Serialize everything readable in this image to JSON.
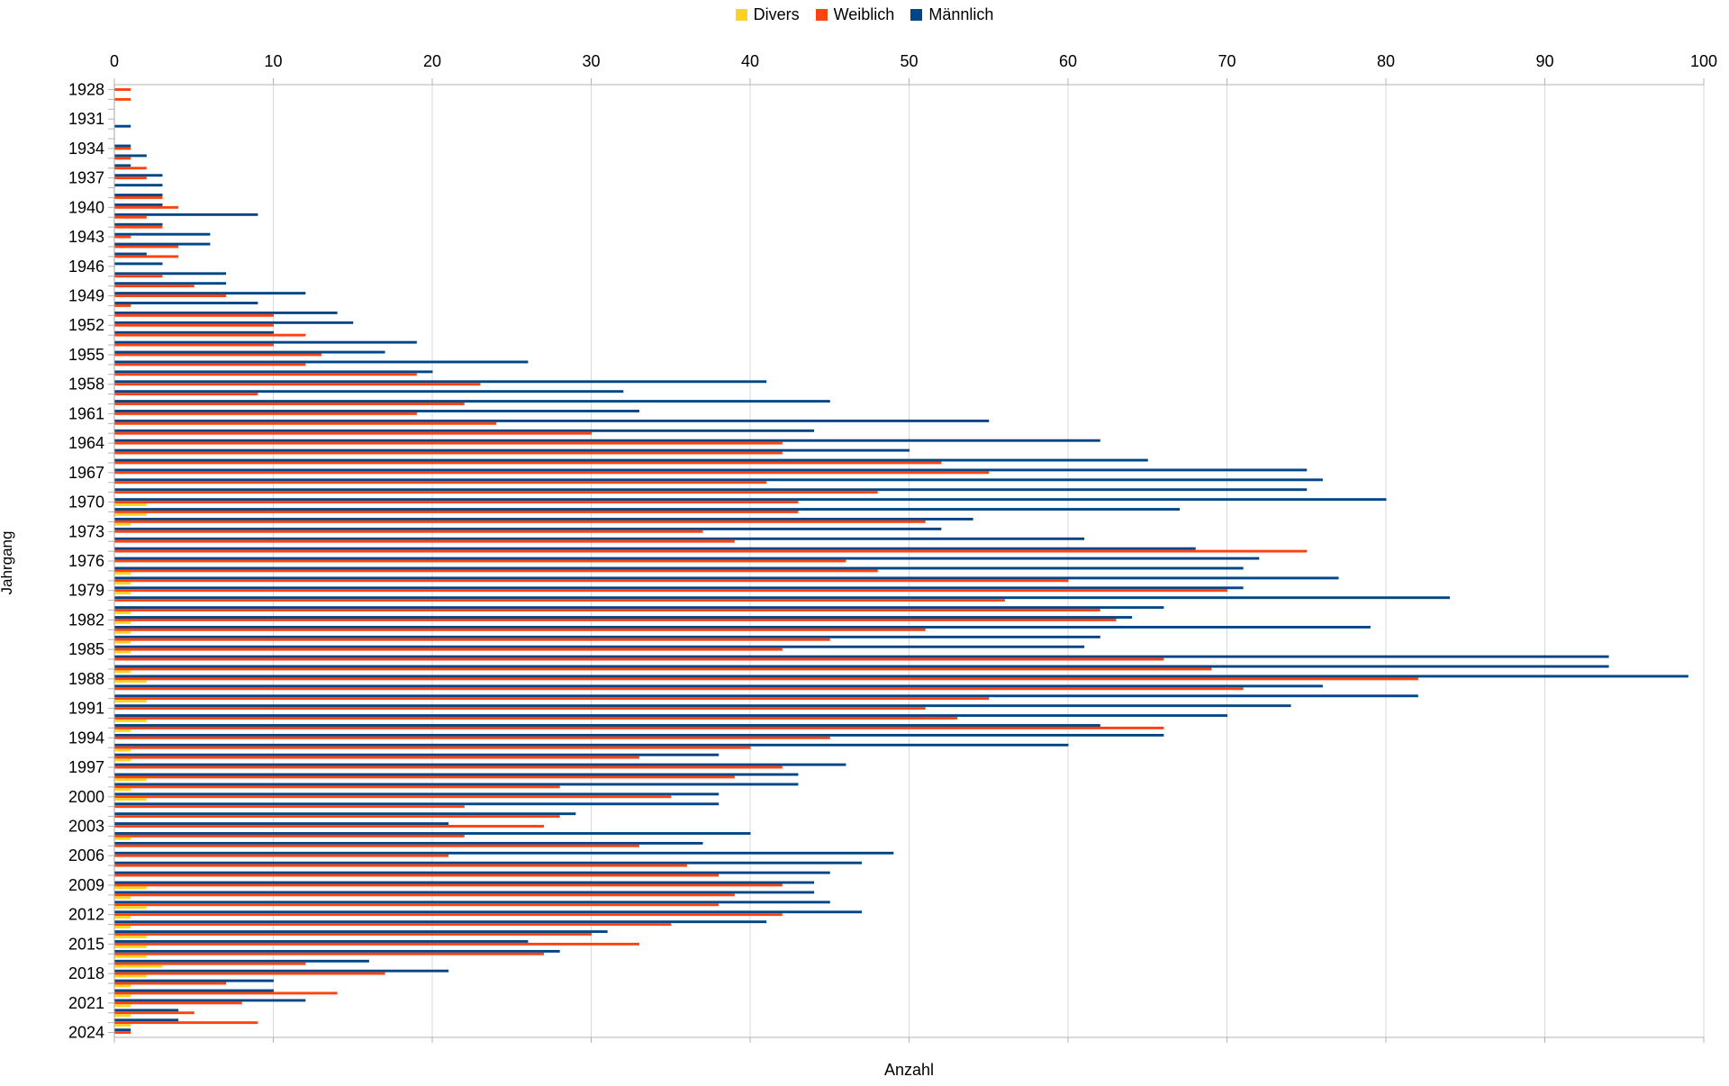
{
  "chart_data": {
    "type": "bar",
    "orientation": "horizontal",
    "title": "",
    "xlabel": "Anzahl",
    "ylabel": "Jahrgang",
    "xlim": [
      0,
      100
    ],
    "x_ticks": [
      0,
      10,
      20,
      30,
      40,
      50,
      60,
      70,
      80,
      90,
      100
    ],
    "y_label_every": 3,
    "grid": "vertical",
    "legend_position": "top-center",
    "colors": {
      "grid": "#d9d9d9",
      "axis": "#b3b3b3",
      "text": "#000000",
      "background": "#ffffff"
    },
    "categories": [
      "1928",
      "1929",
      "1930",
      "1931",
      "1932",
      "1933",
      "1934",
      "1935",
      "1936",
      "1937",
      "1938",
      "1939",
      "1940",
      "1941",
      "1942",
      "1943",
      "1944",
      "1945",
      "1946",
      "1947",
      "1948",
      "1949",
      "1950",
      "1951",
      "1952",
      "1953",
      "1954",
      "1955",
      "1956",
      "1957",
      "1958",
      "1959",
      "1960",
      "1961",
      "1962",
      "1963",
      "1964",
      "1965",
      "1966",
      "1967",
      "1968",
      "1969",
      "1970",
      "1971",
      "1972",
      "1973",
      "1974",
      "1975",
      "1976",
      "1977",
      "1978",
      "1979",
      "1980",
      "1981",
      "1982",
      "1983",
      "1984",
      "1985",
      "1986",
      "1987",
      "1988",
      "1989",
      "1990",
      "1991",
      "1992",
      "1993",
      "1994",
      "1995",
      "1996",
      "1997",
      "1998",
      "1999",
      "2000",
      "2001",
      "2002",
      "2003",
      "2004",
      "2005",
      "2006",
      "2007",
      "2008",
      "2009",
      "2010",
      "2011",
      "2012",
      "2013",
      "2014",
      "2015",
      "2016",
      "2017",
      "2018",
      "2019",
      "2020",
      "2021",
      "2022",
      "2023",
      "2024"
    ],
    "series": [
      {
        "name": "Divers",
        "color": "#FFD320",
        "values": [
          0,
          0,
          0,
          0,
          0,
          0,
          0,
          0,
          0,
          0,
          0,
          0,
          0,
          0,
          0,
          0,
          0,
          0,
          0,
          0,
          0,
          0,
          0,
          0,
          0,
          0,
          0,
          0,
          0,
          0,
          0,
          0,
          0,
          0,
          0,
          0,
          0,
          0,
          0,
          0,
          0,
          0,
          2,
          2,
          1,
          0,
          0,
          0,
          0,
          1,
          1,
          1,
          0,
          1,
          1,
          1,
          1,
          1,
          0,
          1,
          2,
          0,
          2,
          0,
          2,
          1,
          0,
          1,
          1,
          0,
          2,
          1,
          2,
          0,
          0,
          0,
          1,
          0,
          0,
          0,
          0,
          2,
          1,
          2,
          1,
          1,
          2,
          2,
          2,
          3,
          2,
          1,
          1,
          1,
          1,
          1,
          0
        ]
      },
      {
        "name": "Weiblich",
        "color": "#FF420E",
        "values": [
          1,
          1,
          0,
          0,
          0,
          0,
          1,
          1,
          2,
          2,
          0,
          3,
          4,
          2,
          3,
          1,
          4,
          4,
          0,
          3,
          5,
          7,
          1,
          10,
          10,
          12,
          10,
          13,
          12,
          19,
          23,
          9,
          22,
          19,
          24,
          30,
          42,
          42,
          52,
          55,
          41,
          48,
          43,
          43,
          51,
          37,
          39,
          75,
          46,
          48,
          60,
          70,
          56,
          62,
          63,
          51,
          45,
          42,
          66,
          69,
          82,
          71,
          55,
          51,
          53,
          66,
          45,
          40,
          33,
          42,
          39,
          28,
          35,
          22,
          28,
          27,
          22,
          33,
          21,
          36,
          38,
          42,
          39,
          38,
          42,
          35,
          30,
          33,
          27,
          12,
          17,
          7,
          14,
          8,
          5,
          9,
          1
        ]
      },
      {
        "name": "Männlich",
        "color": "#004586",
        "values": [
          0,
          0,
          0,
          0,
          1,
          0,
          1,
          2,
          1,
          3,
          3,
          3,
          3,
          9,
          3,
          6,
          6,
          2,
          3,
          7,
          7,
          12,
          9,
          14,
          15,
          10,
          19,
          17,
          26,
          20,
          41,
          32,
          45,
          33,
          55,
          44,
          62,
          50,
          65,
          75,
          76,
          75,
          80,
          67,
          54,
          52,
          61,
          68,
          72,
          71,
          77,
          71,
          84,
          66,
          64,
          79,
          62,
          61,
          94,
          94,
          99,
          76,
          82,
          74,
          70,
          62,
          66,
          60,
          38,
          46,
          43,
          43,
          38,
          38,
          29,
          21,
          40,
          37,
          49,
          47,
          45,
          44,
          44,
          45,
          47,
          41,
          31,
          26,
          28,
          16,
          21,
          10,
          10,
          12,
          4,
          4,
          1
        ]
      }
    ],
    "bar_draw_order_top_to_bottom": [
      "Männlich",
      "Weiblich",
      "Divers"
    ]
  }
}
